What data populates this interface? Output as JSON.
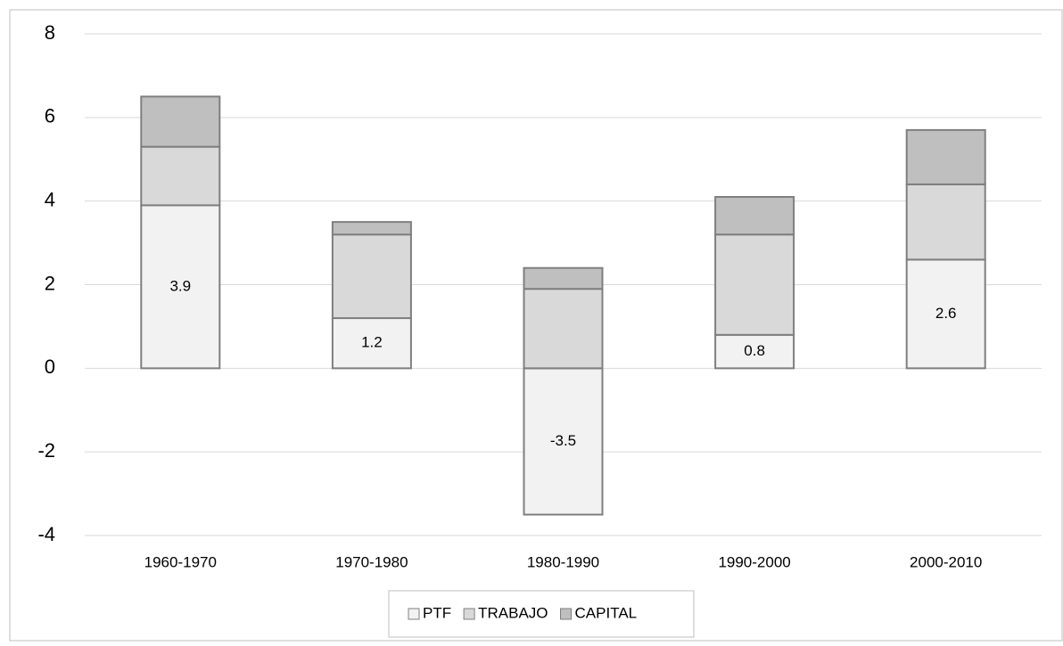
{
  "chart_data": {
    "type": "stacked_bar",
    "categories": [
      "1960-1970",
      "1970-1980",
      "1980-1990",
      "1990-2000",
      "2000-2010"
    ],
    "series": [
      {
        "name": "PTF",
        "color": "#f2f2f2",
        "values": [
          3.9,
          1.2,
          -3.5,
          0.8,
          2.6
        ],
        "data_labels": true
      },
      {
        "name": "TRABAJO",
        "color": "#d9d9d9",
        "values": [
          1.4,
          2.0,
          1.9,
          2.4,
          1.8
        ],
        "data_labels": false
      },
      {
        "name": "CAPITAL",
        "color": "#bfbfbf",
        "values": [
          1.2,
          0.3,
          0.5,
          0.9,
          1.3
        ],
        "data_labels": false
      }
    ],
    "ylim": [
      -4,
      8
    ],
    "yticks": [
      -4,
      -2,
      0,
      2,
      4,
      6,
      8
    ],
    "grid": true,
    "legend": "bottom"
  }
}
